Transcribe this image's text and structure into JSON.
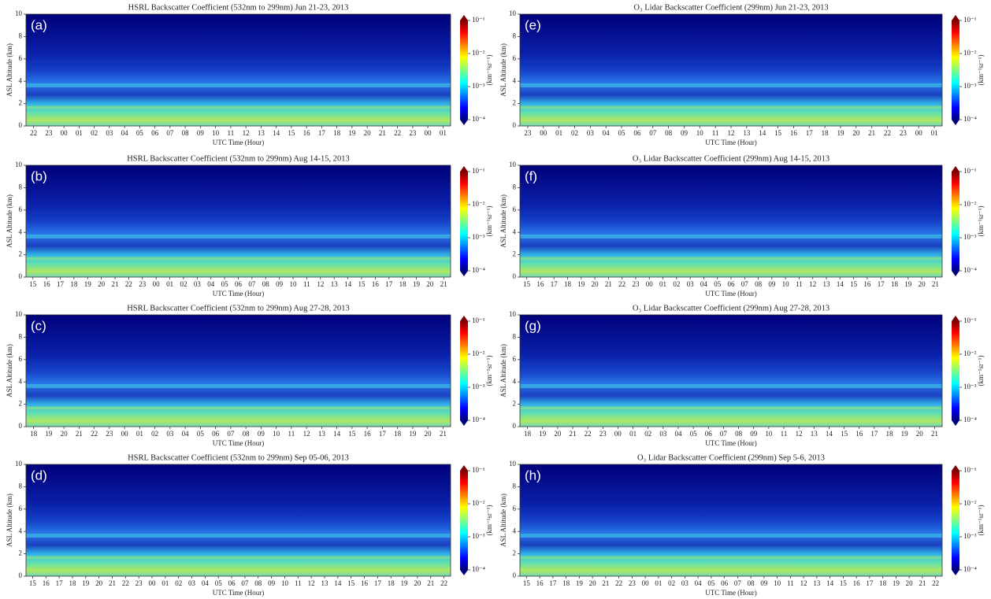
{
  "chart_data": [
    {
      "type": "heatmap",
      "title": "HSRL Backscatter Coefficient (532nm to 299nm) Jun 21-23, 2013",
      "panel_label": "(a)",
      "xlabel": "UTC Time (Hour)",
      "ylabel": "ASL Altitude (km)",
      "categories": [
        "22",
        "23",
        "00",
        "01",
        "02",
        "03",
        "04",
        "05",
        "06",
        "07",
        "08",
        "09",
        "10",
        "11",
        "12",
        "13",
        "14",
        "15",
        "16",
        "17",
        "18",
        "19",
        "20",
        "21",
        "22",
        "23",
        "00",
        "01"
      ],
      "ylim": [
        0,
        10
      ],
      "yticks": [
        0,
        2,
        4,
        6,
        8,
        10
      ],
      "colorbar": {
        "label": "(km⁻¹sr⁻¹)",
        "log": true,
        "clim": [
          0.0001,
          0.1
        ],
        "ticks": [
          {
            "value": 0.0001,
            "label": "10⁻⁴"
          },
          {
            "value": 0.001,
            "label": "10⁻³"
          },
          {
            "value": 0.01,
            "label": "10⁻²"
          },
          {
            "value": 0.1,
            "label": "10⁻¹"
          }
        ]
      }
    },
    {
      "type": "heatmap",
      "title": "HSRL Backscatter Coefficient (532nm to 299nm) Aug 14-15, 2013",
      "panel_label": "(b)",
      "xlabel": "UTC Time (Hour)",
      "ylabel": "ASL Altitude (km)",
      "categories": [
        "15",
        "16",
        "17",
        "18",
        "19",
        "20",
        "21",
        "22",
        "23",
        "00",
        "01",
        "02",
        "03",
        "04",
        "05",
        "06",
        "07",
        "08",
        "09",
        "10",
        "11",
        "12",
        "13",
        "14",
        "15",
        "16",
        "17",
        "18",
        "19",
        "20",
        "21"
      ],
      "ylim": [
        0,
        10
      ],
      "yticks": [
        0,
        2,
        4,
        6,
        8,
        10
      ],
      "colorbar": {
        "label": "(km⁻¹sr⁻¹)",
        "log": true,
        "clim": [
          0.0001,
          0.1
        ],
        "ticks": [
          {
            "value": 0.0001,
            "label": "10⁻⁴"
          },
          {
            "value": 0.001,
            "label": "10⁻³"
          },
          {
            "value": 0.01,
            "label": "10⁻²"
          },
          {
            "value": 0.1,
            "label": "10⁻¹"
          }
        ]
      }
    },
    {
      "type": "heatmap",
      "title": "HSRL Backscatter Coefficient (532nm to 299nm) Aug 27-28, 2013",
      "panel_label": "(c)",
      "xlabel": "UTC Time (Hour)",
      "ylabel": "ASL Altitude (km)",
      "categories": [
        "18",
        "19",
        "20",
        "21",
        "22",
        "23",
        "00",
        "01",
        "02",
        "03",
        "04",
        "05",
        "06",
        "07",
        "08",
        "09",
        "10",
        "11",
        "12",
        "13",
        "14",
        "15",
        "16",
        "17",
        "18",
        "19",
        "20",
        "21"
      ],
      "ylim": [
        0,
        10
      ],
      "yticks": [
        0,
        2,
        4,
        6,
        8,
        10
      ],
      "colorbar": {
        "label": "(km⁻¹sr⁻¹)",
        "log": true,
        "clim": [
          0.0001,
          0.1
        ],
        "ticks": [
          {
            "value": 0.0001,
            "label": "10⁻⁴"
          },
          {
            "value": 0.001,
            "label": "10⁻³"
          },
          {
            "value": 0.01,
            "label": "10⁻²"
          },
          {
            "value": 0.1,
            "label": "10⁻¹"
          }
        ]
      }
    },
    {
      "type": "heatmap",
      "title": "HSRL Backscatter Coefficient (532nm to 299nm) Sep 05-06, 2013",
      "panel_label": "(d)",
      "xlabel": "UTC Time (Hour)",
      "ylabel": "ASL Altitude (km)",
      "categories": [
        "15",
        "16",
        "17",
        "18",
        "19",
        "20",
        "21",
        "22",
        "23",
        "00",
        "01",
        "02",
        "03",
        "04",
        "05",
        "06",
        "07",
        "08",
        "09",
        "10",
        "11",
        "12",
        "13",
        "14",
        "15",
        "16",
        "17",
        "18",
        "19",
        "20",
        "21",
        "22"
      ],
      "ylim": [
        0,
        10
      ],
      "yticks": [
        0,
        2,
        4,
        6,
        8,
        10
      ],
      "colorbar": {
        "label": "(km⁻¹sr⁻¹)",
        "log": true,
        "clim": [
          0.0001,
          0.1
        ],
        "ticks": [
          {
            "value": 0.0001,
            "label": "10⁻⁴"
          },
          {
            "value": 0.001,
            "label": "10⁻³"
          },
          {
            "value": 0.01,
            "label": "10⁻²"
          },
          {
            "value": 0.1,
            "label": "10⁻¹"
          }
        ]
      }
    },
    {
      "type": "heatmap",
      "title": "O₃ Lidar Backscatter Coefficient (299nm) Jun 21-23, 2013",
      "panel_label": "(e)",
      "xlabel": "UTC Time (Hour)",
      "ylabel": "ASL Altitude (km)",
      "categories": [
        "23",
        "00",
        "01",
        "02",
        "03",
        "04",
        "05",
        "06",
        "07",
        "08",
        "09",
        "10",
        "11",
        "12",
        "13",
        "14",
        "15",
        "16",
        "17",
        "18",
        "19",
        "20",
        "21",
        "22",
        "23",
        "00",
        "01"
      ],
      "ylim": [
        0,
        10
      ],
      "yticks": [
        0,
        2,
        4,
        6,
        8,
        10
      ],
      "colorbar": {
        "label": "(km⁻¹sr⁻¹)",
        "log": true,
        "clim": [
          0.0001,
          0.1
        ],
        "ticks": [
          {
            "value": 0.0001,
            "label": "10⁻⁴"
          },
          {
            "value": 0.001,
            "label": "10⁻³"
          },
          {
            "value": 0.01,
            "label": "10⁻²"
          },
          {
            "value": 0.1,
            "label": "10⁻¹"
          }
        ]
      }
    },
    {
      "type": "heatmap",
      "title": "O₃ Lidar Backscatter Coefficient (299nm) Aug 14-15, 2013",
      "panel_label": "(f)",
      "xlabel": "UTC Time (Hour)",
      "ylabel": "ASL Altitude (km)",
      "categories": [
        "15",
        "16",
        "17",
        "18",
        "19",
        "20",
        "21",
        "22",
        "23",
        "00",
        "01",
        "02",
        "03",
        "04",
        "05",
        "06",
        "07",
        "08",
        "09",
        "10",
        "11",
        "12",
        "13",
        "14",
        "15",
        "16",
        "17",
        "18",
        "19",
        "20",
        "21"
      ],
      "ylim": [
        0,
        10
      ],
      "yticks": [
        0,
        2,
        4,
        6,
        8,
        10
      ],
      "colorbar": {
        "label": "(km⁻¹sr⁻¹)",
        "log": true,
        "clim": [
          0.0001,
          0.1
        ],
        "ticks": [
          {
            "value": 0.0001,
            "label": "10⁻⁴"
          },
          {
            "value": 0.001,
            "label": "10⁻³"
          },
          {
            "value": 0.01,
            "label": "10⁻²"
          },
          {
            "value": 0.1,
            "label": "10⁻¹"
          }
        ]
      }
    },
    {
      "type": "heatmap",
      "title": "O₃ Lidar Backscatter Coefficient (299nm) Aug 27-28, 2013",
      "panel_label": "(g)",
      "xlabel": "UTC Time (Hour)",
      "ylabel": "ASL Altitude (km)",
      "categories": [
        "18",
        "19",
        "20",
        "21",
        "22",
        "23",
        "00",
        "01",
        "02",
        "03",
        "04",
        "05",
        "06",
        "07",
        "08",
        "09",
        "10",
        "11",
        "12",
        "13",
        "14",
        "15",
        "16",
        "17",
        "18",
        "19",
        "20",
        "21"
      ],
      "ylim": [
        0,
        10
      ],
      "yticks": [
        0,
        2,
        4,
        6,
        8,
        10
      ],
      "colorbar": {
        "label": "(km⁻¹sr⁻¹)",
        "log": true,
        "clim": [
          0.0001,
          0.1
        ],
        "ticks": [
          {
            "value": 0.0001,
            "label": "10⁻⁴"
          },
          {
            "value": 0.001,
            "label": "10⁻³"
          },
          {
            "value": 0.01,
            "label": "10⁻²"
          },
          {
            "value": 0.1,
            "label": "10⁻¹"
          }
        ]
      }
    },
    {
      "type": "heatmap",
      "title": "O₃ Lidar Backscatter Coefficient (299nm) Sep 5-6, 2013",
      "panel_label": "(h)",
      "xlabel": "UTC Time (Hour)",
      "ylabel": "ASL Altitude (km)",
      "categories": [
        "15",
        "16",
        "17",
        "18",
        "19",
        "20",
        "21",
        "22",
        "23",
        "00",
        "01",
        "02",
        "03",
        "04",
        "05",
        "06",
        "07",
        "08",
        "09",
        "10",
        "11",
        "12",
        "13",
        "14",
        "15",
        "16",
        "17",
        "18",
        "19",
        "20",
        "21",
        "22"
      ],
      "ylim": [
        0,
        10
      ],
      "yticks": [
        0,
        2,
        4,
        6,
        8,
        10
      ],
      "colorbar": {
        "label": "(km⁻¹sr⁻¹)",
        "log": true,
        "clim": [
          0.0001,
          0.1
        ],
        "ticks": [
          {
            "value": 0.0001,
            "label": "10⁻⁴"
          },
          {
            "value": 0.001,
            "label": "10⁻³"
          },
          {
            "value": 0.01,
            "label": "10⁻²"
          },
          {
            "value": 0.1,
            "label": "10⁻¹"
          }
        ]
      }
    }
  ]
}
